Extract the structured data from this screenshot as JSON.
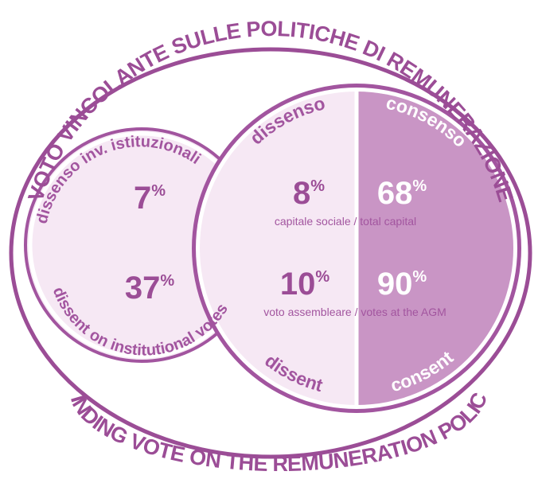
{
  "title": "VOTO VINCOLANTE SULLE POLITICHE DI REMUNERAZIONE",
  "subtitle": "BINDING VOTE ON THE REMUNERATION POLICY",
  "institutional": {
    "label_top": "dissenso inv. istituzionali",
    "label_bottom": "dissent on institutional votes",
    "values": [
      {
        "number": "7",
        "unit": "%"
      },
      {
        "number": "37",
        "unit": "%"
      }
    ]
  },
  "agm": {
    "dissent_it": "dissenso",
    "consent_it": "consenso",
    "dissent_en": "dissent",
    "consent_en": "consent",
    "rows": [
      {
        "dissent": {
          "number": "8",
          "unit": "%"
        },
        "consent": {
          "number": "68",
          "unit": "%"
        },
        "caption": "capitale sociale / total capital"
      },
      {
        "dissent": {
          "number": "10",
          "unit": "%"
        },
        "consent": {
          "number": "90",
          "unit": "%"
        },
        "caption": "voto assembleare / votes at the AGM"
      }
    ]
  }
}
